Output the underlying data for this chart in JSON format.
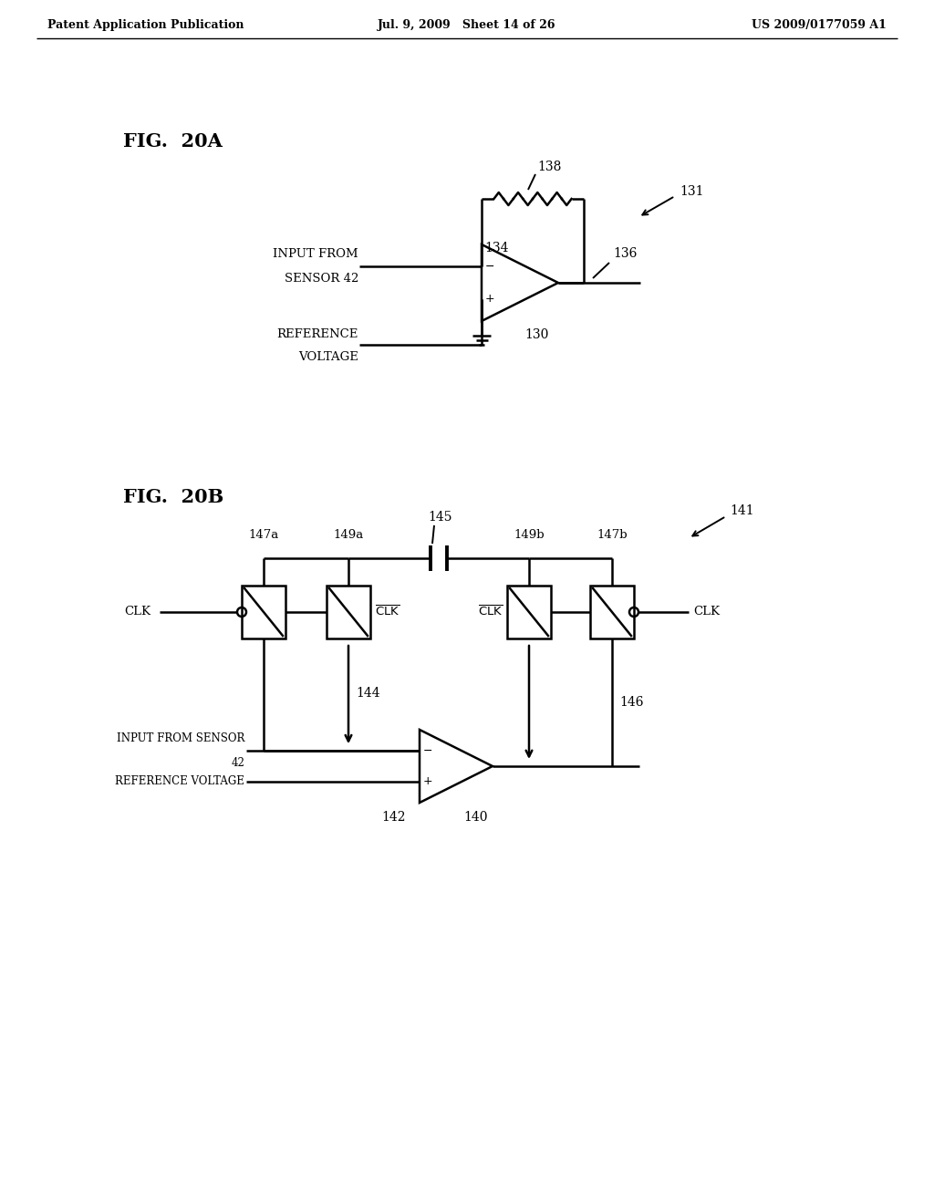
{
  "header_left": "Patent Application Publication",
  "header_mid": "Jul. 9, 2009   Sheet 14 of 26",
  "header_right": "US 2009/0177059 A1",
  "fig_20a_label": "FIG.  20A",
  "fig_20b_label": "FIG.  20B",
  "background_color": "#ffffff",
  "line_color": "#000000"
}
